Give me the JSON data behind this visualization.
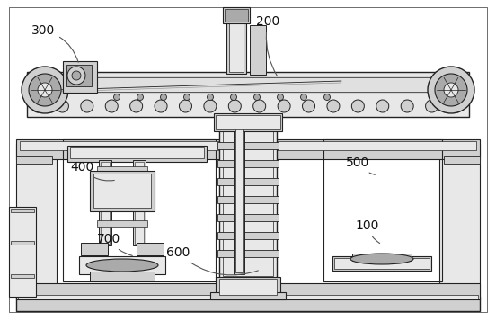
{
  "bg_color": "#ffffff",
  "outer_bg": "#f5f5f5",
  "line_color": "#333333",
  "dark_line": "#222222",
  "mid_gray": "#888888",
  "light_gray": "#cccccc",
  "fill_light": "#e8e8e8",
  "fill_mid": "#d0d0d0",
  "fill_dark": "#aaaaaa",
  "label_fontsize": 10,
  "figsize": [
    5.52,
    3.57
  ],
  "dpi": 100
}
